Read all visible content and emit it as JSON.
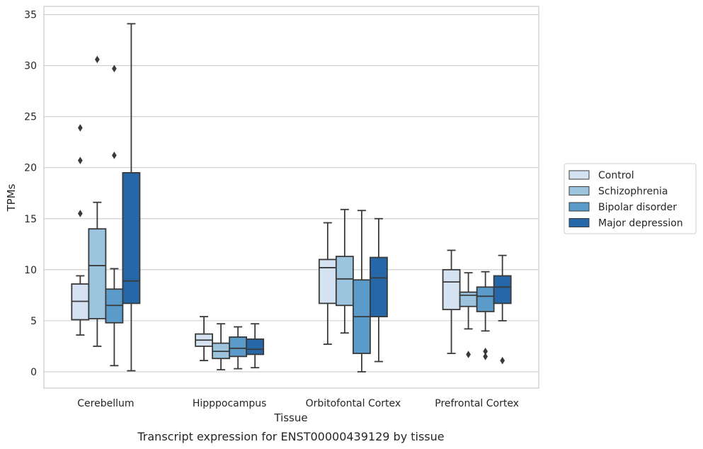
{
  "chart_data": {
    "type": "box",
    "caption": "Transcript expression for ENST00000439129 by tissue",
    "xlabel": "Tissue",
    "ylabel": "TPMs",
    "ylim": [
      -1.6,
      35.8
    ],
    "yticks": [
      0,
      5,
      10,
      15,
      20,
      25,
      30,
      35
    ],
    "grid": "horizontal",
    "legend_position": "right",
    "categories": [
      "Cerebellum",
      "Hipppocampus",
      "Orbitofontal Cortex",
      "Prefrontal Cortex"
    ],
    "series": [
      {
        "name": "Control",
        "color": "#d4e2f1",
        "boxes": [
          {
            "whislo": 3.6,
            "q1": 5.1,
            "med": 6.9,
            "q3": 8.6,
            "whishi": 9.4,
            "fliers": [
              15.5,
              20.7,
              23.9
            ]
          },
          {
            "whislo": 1.1,
            "q1": 2.5,
            "med": 3.1,
            "q3": 3.7,
            "whishi": 5.4,
            "fliers": []
          },
          {
            "whislo": 2.7,
            "q1": 6.7,
            "med": 10.2,
            "q3": 11.0,
            "whishi": 14.6,
            "fliers": []
          },
          {
            "whislo": 1.8,
            "q1": 6.1,
            "med": 8.8,
            "q3": 10.0,
            "whishi": 11.9,
            "fliers": []
          }
        ]
      },
      {
        "name": "Schizophrenia",
        "color": "#9dc4df",
        "boxes": [
          {
            "whislo": 2.5,
            "q1": 5.2,
            "med": 10.4,
            "q3": 14.0,
            "whishi": 16.6,
            "fliers": [
              30.6
            ]
          },
          {
            "whislo": 0.2,
            "q1": 1.3,
            "med": 2.0,
            "q3": 2.8,
            "whishi": 4.7,
            "fliers": []
          },
          {
            "whislo": 3.8,
            "q1": 6.5,
            "med": 9.1,
            "q3": 11.3,
            "whishi": 15.9,
            "fliers": []
          },
          {
            "whislo": 4.2,
            "q1": 6.4,
            "med": 7.5,
            "q3": 7.8,
            "whishi": 9.7,
            "fliers": [
              1.7
            ]
          }
        ]
      },
      {
        "name": "Bipolar disorder",
        "color": "#5b9bc9",
        "boxes": [
          {
            "whislo": 0.6,
            "q1": 4.8,
            "med": 6.5,
            "q3": 8.1,
            "whishi": 10.1,
            "fliers": [
              21.2,
              29.7
            ]
          },
          {
            "whislo": 0.3,
            "q1": 1.5,
            "med": 2.3,
            "q3": 3.4,
            "whishi": 4.4,
            "fliers": []
          },
          {
            "whislo": 0.0,
            "q1": 1.8,
            "med": 5.4,
            "q3": 9.0,
            "whishi": 15.8,
            "fliers": []
          },
          {
            "whislo": 4.0,
            "q1": 5.9,
            "med": 7.4,
            "q3": 8.3,
            "whishi": 9.8,
            "fliers": [
              1.5,
              2.0
            ]
          }
        ]
      },
      {
        "name": "Major depression",
        "color": "#2667a8",
        "boxes": [
          {
            "whislo": 0.1,
            "q1": 6.7,
            "med": 8.9,
            "q3": 19.5,
            "whishi": 34.1,
            "fliers": []
          },
          {
            "whislo": 0.4,
            "q1": 1.7,
            "med": 2.2,
            "q3": 3.2,
            "whishi": 4.7,
            "fliers": []
          },
          {
            "whislo": 1.0,
            "q1": 5.4,
            "med": 9.2,
            "q3": 11.2,
            "whishi": 15.0,
            "fliers": []
          },
          {
            "whislo": 5.0,
            "q1": 6.7,
            "med": 8.3,
            "q3": 9.4,
            "whishi": 11.4,
            "fliers": [
              1.1
            ]
          }
        ]
      }
    ]
  }
}
